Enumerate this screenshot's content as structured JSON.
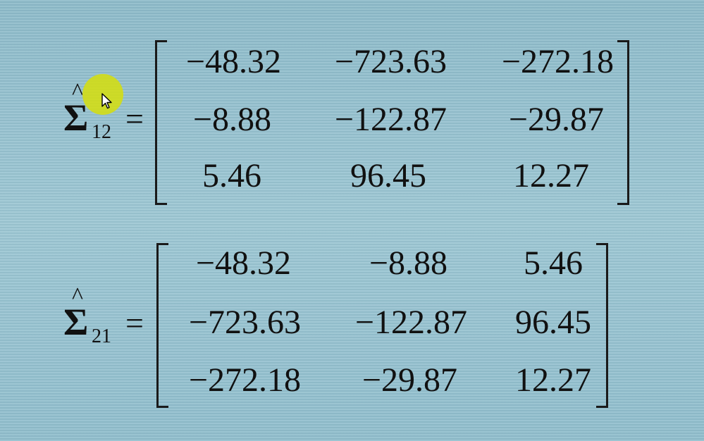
{
  "matrices": [
    {
      "symbol": "Σ",
      "hat": "^",
      "subscript": "12",
      "equals": "=",
      "rows": [
        [
          "−48.32",
          "−723.63",
          "−272.18"
        ],
        [
          "−8.88",
          "−122.87",
          "−29.87"
        ],
        [
          "5.46",
          "96.45",
          "12.27"
        ]
      ]
    },
    {
      "symbol": "Σ",
      "hat": "^",
      "subscript": "21",
      "equals": "=",
      "rows": [
        [
          "−48.32",
          "−8.88",
          "5.46"
        ],
        [
          "−723.63",
          "−122.87",
          "96.45"
        ],
        [
          "−272.18",
          "−29.87",
          "12.27"
        ]
      ]
    }
  ],
  "colors": {
    "background": "#8fbccb",
    "text": "#111111",
    "cursor_highlight": "#d6de0a"
  },
  "icons": {
    "cursor": "mouse-pointer-icon"
  }
}
